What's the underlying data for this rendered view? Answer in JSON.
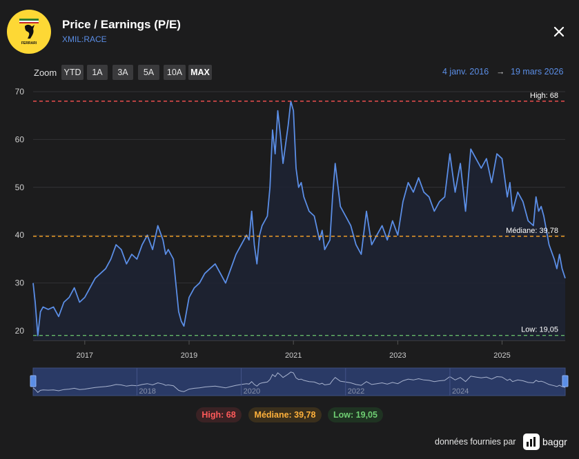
{
  "header": {
    "title": "Price / Earnings (P/E)",
    "ticker": "XMIL:RACE",
    "logo_text": "FERRARI"
  },
  "zoom": {
    "label": "Zoom",
    "buttons": [
      "YTD",
      "1A",
      "3A",
      "5A",
      "10A",
      "MAX"
    ],
    "active": "MAX"
  },
  "date_range": {
    "start": "4 janv. 2016",
    "arrow": "→",
    "end": "19 mars 2026"
  },
  "chart_data": {
    "type": "line",
    "title": "Price / Earnings (P/E)",
    "xlabel": "",
    "ylabel": "",
    "ylim": [
      18,
      71
    ],
    "xlim": [
      2016.01,
      2026.21
    ],
    "y_ticks": [
      20,
      30,
      40,
      50,
      60,
      70
    ],
    "x_ticks": [
      "2017",
      "2019",
      "2021",
      "2023",
      "2025"
    ],
    "x_tick_values": [
      2017,
      2019,
      2021,
      2023,
      2025
    ],
    "navigator_ticks": [
      "2018",
      "2020",
      "2022",
      "2024"
    ],
    "navigator_tick_values": [
      2018,
      2020,
      2022,
      2024
    ],
    "series": [
      {
        "name": "P/E",
        "color": "#5b8ee6",
        "x": [
          2016.01,
          2016.05,
          2016.1,
          2016.15,
          2016.2,
          2016.3,
          2016.4,
          2016.5,
          2016.6,
          2016.7,
          2016.8,
          2016.9,
          2017.0,
          2017.1,
          2017.2,
          2017.3,
          2017.4,
          2017.5,
          2017.6,
          2017.7,
          2017.8,
          2017.9,
          2018.0,
          2018.1,
          2018.2,
          2018.3,
          2018.4,
          2018.5,
          2018.55,
          2018.6,
          2018.7,
          2018.8,
          2018.85,
          2018.9,
          2018.95,
          2019.0,
          2019.05,
          2019.1,
          2019.2,
          2019.3,
          2019.4,
          2019.5,
          2019.6,
          2019.7,
          2019.8,
          2019.9,
          2020.0,
          2020.1,
          2020.15,
          2020.2,
          2020.25,
          2020.3,
          2020.35,
          2020.4,
          2020.5,
          2020.55,
          2020.6,
          2020.65,
          2020.7,
          2020.75,
          2020.8,
          2020.9,
          2020.95,
          2021.0,
          2021.05,
          2021.1,
          2021.15,
          2021.2,
          2021.3,
          2021.4,
          2021.5,
          2021.55,
          2021.6,
          2021.7,
          2021.75,
          2021.8,
          2021.9,
          2022.0,
          2022.1,
          2022.2,
          2022.3,
          2022.4,
          2022.5,
          2022.6,
          2022.7,
          2022.8,
          2022.9,
          2023.0,
          2023.1,
          2023.2,
          2023.3,
          2023.4,
          2023.5,
          2023.6,
          2023.7,
          2023.8,
          2023.9,
          2024.0,
          2024.1,
          2024.2,
          2024.3,
          2024.4,
          2024.5,
          2024.6,
          2024.7,
          2024.8,
          2024.9,
          2025.0,
          2025.05,
          2025.1,
          2025.15,
          2025.2,
          2025.3,
          2025.4,
          2025.5,
          2025.6,
          2025.65,
          2025.7,
          2025.75,
          2025.8,
          2025.9,
          2026.0,
          2026.05,
          2026.1,
          2026.15,
          2026.21
        ],
        "values": [
          30,
          26,
          19,
          24,
          25,
          24.5,
          25,
          23,
          26,
          27,
          29,
          26,
          27,
          29,
          31,
          32,
          33,
          35,
          38,
          37,
          34,
          36,
          35,
          38,
          40,
          37,
          42,
          39,
          36,
          37,
          35,
          24,
          22,
          21,
          24,
          27,
          28,
          29,
          30,
          32,
          33,
          34,
          32,
          30,
          33,
          36,
          38,
          40,
          39,
          45,
          38,
          34,
          40,
          42,
          44,
          50,
          62,
          57,
          66,
          61,
          55,
          63,
          68,
          66,
          54,
          50,
          51,
          48,
          45,
          44,
          39,
          41,
          37,
          39,
          48,
          55,
          46,
          44,
          42,
          38,
          36,
          45,
          38,
          40,
          42,
          39,
          43,
          40,
          47,
          51,
          49,
          52,
          49,
          48,
          45,
          47,
          48,
          57,
          49,
          55,
          45,
          58,
          56,
          54,
          56,
          51,
          57,
          56,
          52,
          48,
          51,
          45,
          49,
          47,
          43,
          42,
          48,
          45,
          46,
          44,
          38,
          35,
          33,
          36,
          33,
          31
        ]
      }
    ],
    "annotations": [
      {
        "label": "High: 68",
        "value": 68,
        "color": "#ff5252"
      },
      {
        "label": "Médiane: 39,78",
        "value": 39.78,
        "color": "#ffa726"
      },
      {
        "label": "Low: 19,05",
        "value": 19.05,
        "color": "#66bb6a"
      }
    ]
  },
  "legend": {
    "high": "High: 68",
    "median": "Médiane: 39,78",
    "low": "Low: 19,05"
  },
  "footer": {
    "provided_by": "données fournies par",
    "brand": "baggr"
  },
  "colors": {
    "background": "#1c1c1d",
    "line": "#5b8ee6",
    "high": "#ff5252",
    "median": "#ffa726",
    "low": "#66bb6a"
  }
}
